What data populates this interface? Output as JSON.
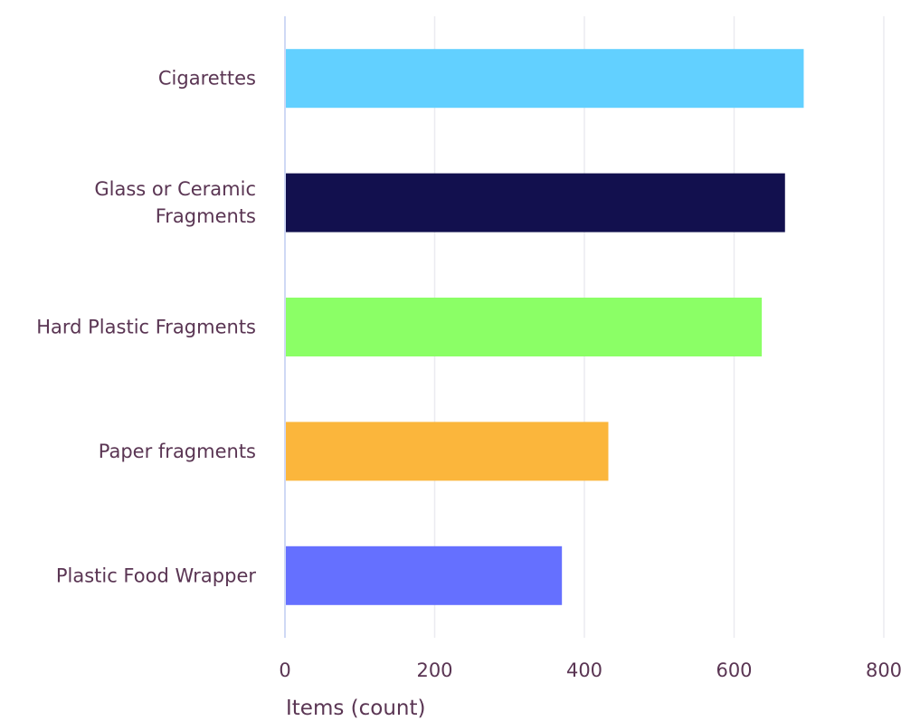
{
  "chart_data": {
    "type": "bar",
    "orientation": "horizontal",
    "categories": [
      [
        "Cigarettes"
      ],
      [
        "Glass or Ceramic",
        "Fragments"
      ],
      [
        "Hard Plastic Fragments"
      ],
      [
        "Paper fragments"
      ],
      [
        "Plastic Food Wrapper"
      ]
    ],
    "values": [
      693,
      668,
      637,
      432,
      370
    ],
    "colors": [
      "#62d0ff",
      "#12104e",
      "#8bff66",
      "#fbb63c",
      "#6570ff"
    ],
    "xlabel": "Items (count)",
    "ylabel": "",
    "xlim": [
      0,
      800
    ],
    "xticks": [
      0,
      200,
      400,
      600,
      800
    ],
    "grid": true
  }
}
